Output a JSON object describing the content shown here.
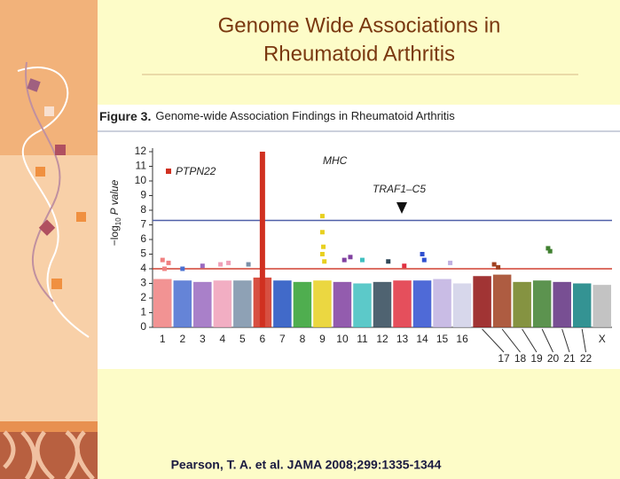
{
  "slide": {
    "title_lines": [
      "Genome Wide Associations in",
      "Rheumatoid Arthritis"
    ],
    "citation": "Pearson, T. A. et al. JAMA 2008;299:1335-1344"
  },
  "chart_data": {
    "type": "manhattan",
    "figure_label": "Figure 3.",
    "title": "Genome-wide Association Findings in Rheumatoid Arthritis",
    "y_label": [
      "−log",
      "10",
      "P value"
    ],
    "categories": [
      "1",
      "2",
      "3",
      "4",
      "5",
      "6",
      "7",
      "8",
      "9",
      "10",
      "11",
      "12",
      "13",
      "14",
      "15",
      "16",
      "17",
      "18",
      "19",
      "20",
      "21",
      "22",
      "X"
    ],
    "colors": [
      "#f08080",
      "#4a6fd0",
      "#9a6ac0",
      "#f0a0b8",
      "#7a90a8",
      "#d03020",
      "#2050c0",
      "#30a030",
      "#e8d020",
      "#8040a0",
      "#40c0c0",
      "#304858",
      "#e03040",
      "#3050d0",
      "#c0b0e0",
      "#d0d0e8",
      "#901010",
      "#a04020",
      "#708020",
      "#408030",
      "#603080",
      "#108080",
      "#b8b8b8"
    ],
    "values": [
      3.3,
      3.2,
      3.1,
      3.2,
      3.2,
      3.4,
      3.2,
      3.1,
      3.2,
      3.1,
      3.0,
      3.1,
      3.2,
      3.2,
      3.3,
      3.0,
      3.5,
      3.6,
      3.1,
      3.2,
      3.1,
      3.0,
      2.9
    ],
    "points": {
      "x": [
        1.0,
        1.1,
        1.3,
        2.0,
        3.0,
        3.9,
        4.3,
        5.3,
        9.0,
        9.0,
        9.05,
        9.0,
        9.1,
        10.1,
        10.4,
        11.0,
        12.3,
        13.1,
        14.0,
        14.1,
        15.4,
        17.6,
        17.8,
        20.3,
        20.4
      ],
      "values": [
        4.6,
        4.0,
        4.4,
        4.0,
        4.2,
        4.3,
        4.4,
        4.3,
        7.6,
        6.5,
        5.5,
        5.0,
        4.5,
        4.6,
        4.8,
        4.6,
        4.5,
        4.2,
        5.0,
        4.6,
        4.4,
        4.3,
        4.1,
        5.4,
        5.2
      ]
    },
    "peak": {
      "x": 6,
      "value": 12,
      "color": "#d03020"
    },
    "thresholds": [
      {
        "value": 7.3,
        "color": "#5060a8"
      },
      {
        "value": 4,
        "color": "#d04030"
      }
    ],
    "annotations": [
      "PTPN22",
      "MHC",
      "TRAF1–C5"
    ],
    "xlim": [
      0.5,
      23.5
    ],
    "ylim": [
      0,
      12
    ],
    "yticks": [
      0,
      1,
      2,
      3,
      4,
      5,
      6,
      7,
      8,
      9,
      10,
      11,
      12
    ]
  }
}
